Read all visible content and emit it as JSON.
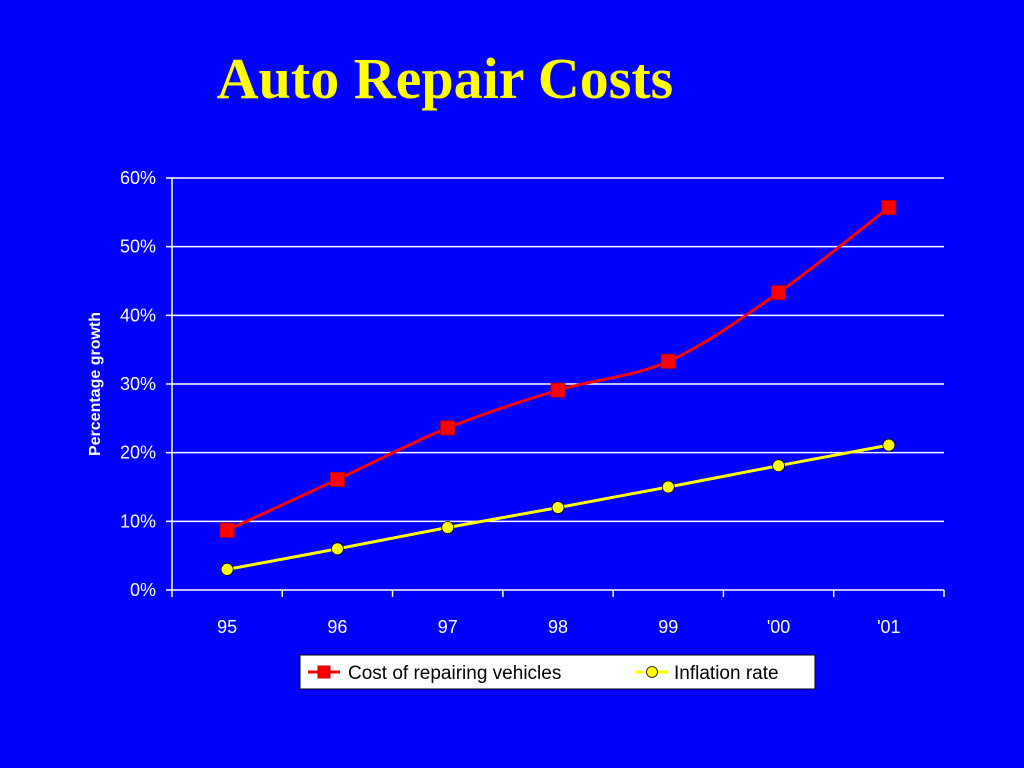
{
  "slide": {
    "title": "Auto Repair Costs"
  },
  "colors": {
    "background": "#0000ff",
    "title": "#ffff00",
    "gridline": "#ffffff",
    "legend_box": "#ffffff"
  },
  "chart_data": {
    "type": "line",
    "categories": [
      "95",
      "96",
      "97",
      "98",
      "99",
      "'00",
      "'01"
    ],
    "series": [
      {
        "name": "Cost of repairing vehicles",
        "values": [
          8.7,
          16.1,
          23.6,
          29.1,
          33.3,
          43.3,
          55.7
        ],
        "color": "#ff0000",
        "marker": "square"
      },
      {
        "name": "Inflation rate",
        "values": [
          3.0,
          6.0,
          9.1,
          12.0,
          15.0,
          18.1,
          21.1
        ],
        "color": "#ffff00",
        "marker": "circle"
      }
    ],
    "ylabel": "Percentage growth",
    "ylim": [
      0,
      60
    ],
    "yticks": [
      "0%",
      "10%",
      "20%",
      "30%",
      "40%",
      "50%",
      "60%"
    ],
    "ytick_values": [
      0,
      10,
      20,
      30,
      40,
      50,
      60
    ],
    "grid": true,
    "legend_position": "bottom"
  }
}
